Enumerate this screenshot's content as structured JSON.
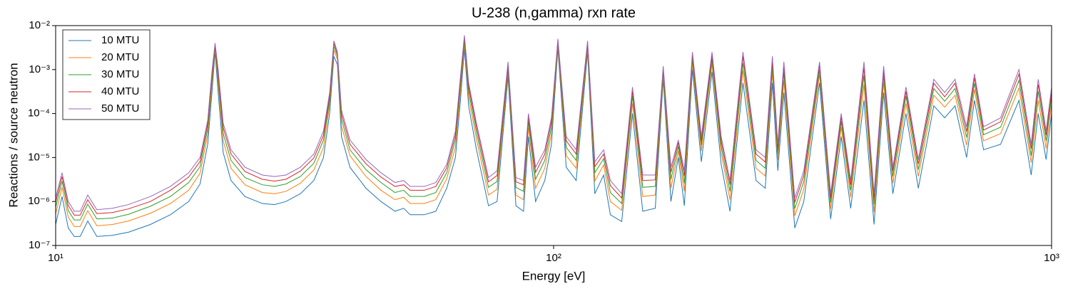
{
  "chart_data": {
    "type": "line",
    "title": "U-238 (n,gamma) rxn rate",
    "x_label": "Energy [eV]",
    "y_label": "Reactions / source neutron",
    "log_x": true,
    "log_y": true,
    "legend_loc": "upper left",
    "xlim": [
      10,
      1000
    ],
    "ylim": [
      1e-07,
      0.01
    ],
    "xticks": [
      {
        "value": 10,
        "label": "10¹"
      },
      {
        "value": 100,
        "label": "10²"
      },
      {
        "value": 1000,
        "label": "10³"
      }
    ],
    "yticks": [
      {
        "value": 1e-07,
        "label": "10⁻⁷"
      },
      {
        "value": 1e-06,
        "label": "10⁻⁶"
      },
      {
        "value": 1e-05,
        "label": "10⁻⁵"
      },
      {
        "value": 0.0001,
        "label": "10⁻⁴"
      },
      {
        "value": 0.001,
        "label": "10⁻³"
      },
      {
        "value": 0.01,
        "label": "10⁻²"
      }
    ],
    "x": [
      10,
      10.3,
      10.6,
      10.9,
      11.2,
      11.6,
      12.1,
      13,
      14,
      15.5,
      17,
      18.5,
      19.5,
      20.2,
      20.6,
      20.9,
      21.2,
      21.7,
      22.5,
      24,
      26,
      27.5,
      29,
      31,
      33,
      34.5,
      35.5,
      36.2,
      36.8,
      37.5,
      39,
      42,
      45,
      48,
      50,
      51.5,
      55,
      58,
      61,
      63.5,
      65,
      66.2,
      67.5,
      70,
      74,
      77,
      81,
      84,
      87,
      89,
      92,
      96,
      99,
      102,
      106,
      111,
      117,
      121,
      126,
      130,
      137,
      144,
      151,
      160,
      166,
      172,
      178,
      183,
      190,
      198,
      208,
      217,
      226,
      240,
      255,
      266,
      275,
      282,
      290,
      305,
      318,
      342,
      360,
      378,
      395,
      420,
      440,
      460,
      480,
      510,
      540,
      580,
      610,
      640,
      675,
      700,
      730,
      790,
      860,
      910,
      940,
      975,
      1000
    ],
    "series": [
      {
        "name": "10 MTU",
        "color": "#1f77b4",
        "values": [
          3e-07,
          1.3e-06,
          2.5e-07,
          1.6e-07,
          1.6e-07,
          3.6e-07,
          1.6e-07,
          1.7e-07,
          2e-07,
          3e-07,
          5e-07,
          1e-06,
          2.5e-06,
          2e-05,
          0.0003,
          0.0025,
          0.0003,
          1.3e-05,
          3e-06,
          1.3e-06,
          9e-07,
          8.5e-07,
          1e-06,
          1.5e-06,
          3e-06,
          1e-05,
          0.0001,
          0.002,
          0.0013,
          3e-05,
          6e-06,
          2e-06,
          1e-06,
          6e-07,
          7e-07,
          5e-07,
          5e-07,
          6e-07,
          2e-06,
          1e-05,
          0.0002,
          0.003,
          0.00015,
          1.5e-05,
          8e-07,
          1e-06,
          0.0007,
          8e-07,
          6e-07,
          3e-05,
          1e-06,
          3e-06,
          2e-05,
          0.003,
          6e-06,
          3e-06,
          0.0025,
          1.5e-06,
          4e-06,
          5e-07,
          3.5e-07,
          0.0001,
          6e-07,
          7e-07,
          0.0006,
          1e-06,
          1e-05,
          8e-07,
          0.001,
          8e-06,
          0.0009,
          7e-06,
          6e-07,
          0.0005,
          3e-06,
          2e-06,
          0.0005,
          5e-06,
          0.0003,
          2.5e-07,
          1e-06,
          0.0005,
          4e-07,
          3e-05,
          7e-07,
          0.0002,
          3e-07,
          0.0003,
          1.5e-06,
          0.0001,
          2e-06,
          0.00015,
          8e-05,
          0.00015,
          1e-05,
          0.0002,
          1.5e-05,
          2e-05,
          0.0002,
          4e-06,
          0.0001,
          9e-06,
          0.0001
        ]
      },
      {
        "name": "20 MTU",
        "color": "#ff7f0e",
        "values": [
          5.2e-07,
          2.1e-06,
          4.4e-07,
          2.7e-07,
          2.7e-07,
          6.2e-07,
          2.8e-07,
          3e-07,
          3.6e-07,
          5.4e-07,
          9e-07,
          1.8e-06,
          4.4e-06,
          3.3e-05,
          0.00047,
          0.003,
          0.00049,
          2.4e-05,
          5.7e-06,
          2.4e-06,
          1.6e-06,
          1.5e-06,
          1.7e-06,
          2.6e-06,
          5.2e-06,
          1.7e-05,
          0.000155,
          0.0028,
          0.0017,
          5.2e-05,
          1.1e-05,
          3.7e-06,
          1.8e-06,
          1.1e-06,
          1.25e-06,
          9e-07,
          9e-07,
          1.1e-06,
          3.3e-06,
          1.7e-05,
          0.00033,
          0.004,
          0.00024,
          2.6e-05,
          1.4e-06,
          1.9e-06,
          0.00095,
          1.4e-06,
          1.1e-06,
          4.9e-05,
          2e-06,
          5.7e-06,
          3.5e-05,
          0.0037,
          1.1e-05,
          5.7e-06,
          0.0032,
          2.9e-06,
          6.8e-06,
          1e-06,
          6.3e-07,
          0.00017,
          1.3e-06,
          1.4e-06,
          0.00079,
          2e-06,
          1.4e-05,
          1.7e-06,
          0.0014,
          1.4e-05,
          0.00135,
          1.3e-05,
          1.1e-06,
          0.00095,
          5.7e-06,
          3.8e-06,
          0.00087,
          8.7e-06,
          0.00057,
          4.7e-07,
          1.9e-06,
          0.00078,
          6.8e-07,
          4.9e-05,
          1.25e-06,
          0.00045,
          5.7e-07,
          0.00052,
          2.6e-06,
          0.00017,
          3.7e-06,
          0.00026,
          0.00014,
          0.00026,
          1.9e-05,
          0.00035,
          2.4e-05,
          3.5e-05,
          0.00038,
          7.6e-06,
          0.0002,
          1.6e-05,
          0.00017
        ]
      },
      {
        "name": "30 MTU",
        "color": "#2ca02c",
        "values": [
          7.4e-07,
          2.9e-06,
          6.2e-07,
          3.8e-07,
          3.8e-07,
          8.7e-07,
          4e-07,
          4.2e-07,
          5.1e-07,
          7.8e-07,
          1.3e-06,
          2.7e-06,
          6.2e-06,
          4.5e-05,
          0.00061,
          0.0034,
          0.00066,
          3.5e-05,
          8.6e-06,
          3.5e-06,
          2.4e-06,
          2.2e-06,
          2.5e-06,
          3.7e-06,
          7.4e-06,
          2.5e-05,
          0.0002,
          0.0034,
          0.002,
          7.4e-05,
          1.5e-05,
          5.3e-06,
          2.7e-06,
          1.6e-06,
          1.8e-06,
          1.3e-06,
          1.3e-06,
          1.6e-06,
          4.5e-06,
          2.5e-05,
          0.00045,
          0.0047,
          0.00033,
          3.7e-05,
          2.1e-06,
          2.85e-06,
          0.0011,
          2.1e-06,
          1.7e-06,
          6.6e-05,
          3.2e-06,
          8.6e-06,
          4.9e-05,
          0.0042,
          1.7e-05,
          8.6e-06,
          0.0037,
          4.5e-06,
          9.4e-06,
          1.6e-06,
          9e-07,
          0.00025,
          2.1e-06,
          2.2e-06,
          0.00094,
          3.2e-06,
          1.8e-05,
          2.6e-06,
          0.0018,
          1.9e-05,
          0.0017,
          1.8e-05,
          1.7e-06,
          0.0014,
          8.6e-06,
          5.7e-06,
          0.0012,
          1.2e-05,
          0.00086,
          6.9e-07,
          2.85e-06,
          0.001,
          9.4e-07,
          6.6e-05,
          1.8e-06,
          0.00074,
          8.6e-07,
          0.00074,
          3.7e-06,
          0.00025,
          5.3e-06,
          0.00037,
          0.00019,
          0.00037,
          2.85e-05,
          0.00049,
          3.3e-05,
          4.9e-05,
          0.00057,
          1.1e-05,
          0.00032,
          2.4e-05,
          0.00025
        ]
      },
      {
        "name": "40 MTU",
        "color": "#d62728",
        "values": [
          9.8e-07,
          3.7e-06,
          8.1e-07,
          4.9e-07,
          4.9e-07,
          1.1e-06,
          5.3e-07,
          5.6e-07,
          6.8e-07,
          1e-06,
          1.8e-06,
          3.6e-06,
          8.1e-06,
          5.8e-05,
          0.00076,
          0.0037,
          0.00083,
          4.8e-05,
          1.2e-05,
          4.8e-06,
          3.2e-06,
          2.9e-06,
          3.2e-06,
          4.9e-06,
          9.8e-06,
          3.2e-05,
          0.00025,
          0.004,
          0.0023,
          9.8e-05,
          2e-05,
          7.2e-06,
          3.6e-06,
          2.2e-06,
          2.4e-06,
          1.8e-06,
          1.8e-06,
          2.2e-06,
          5.8e-06,
          3.2e-05,
          0.00058,
          0.0054,
          0.00042,
          4.9e-05,
          2.8e-06,
          3.9e-06,
          0.0013,
          2.8e-06,
          2.4e-06,
          8.3e-05,
          4.6e-06,
          1.2e-05,
          6.5e-05,
          0.0046,
          2.4e-05,
          1.2e-05,
          0.0041,
          6.2e-06,
          1.2e-05,
          2.3e-06,
          1.2e-06,
          0.00032,
          3e-06,
          3.1e-06,
          0.0011,
          4.6e-06,
          2.2e-05,
          3.8e-06,
          0.0022,
          2.4e-05,
          0.0021,
          2.4e-05,
          2.4e-06,
          0.002,
          1.2e-05,
          7.9e-06,
          0.0016,
          1.6e-05,
          0.0012,
          9.5e-07,
          3.9e-06,
          0.0013,
          1.2e-06,
          8.3e-05,
          2.4e-06,
          0.0011,
          1.2e-06,
          0.00098,
          4.9e-06,
          0.00032,
          7.2e-06,
          0.00049,
          0.00024,
          0.00049,
          3.9e-05,
          0.00065,
          4.2e-05,
          6.5e-05,
          0.00079,
          1.6e-05,
          0.00046,
          3.2e-05,
          0.00032
        ]
      },
      {
        "name": "50 MTU",
        "color": "#9467bd",
        "values": [
          1.2e-06,
          4.5e-06,
          1e-06,
          6e-07,
          6e-07,
          1.4e-06,
          6.5e-07,
          7e-07,
          8.5e-07,
          1.3e-06,
          2.2e-06,
          4.5e-06,
          1e-05,
          7e-05,
          0.0009,
          0.004,
          0.001,
          6e-05,
          1.5e-05,
          6e-06,
          4e-06,
          3.7e-06,
          4e-06,
          6e-06,
          1.2e-05,
          4e-05,
          0.0003,
          0.0045,
          0.0025,
          0.00012,
          2.5e-05,
          9e-06,
          4.5e-06,
          2.7e-06,
          3e-06,
          2.2e-06,
          2.2e-06,
          2.7e-06,
          7e-06,
          4e-05,
          0.0007,
          0.006,
          0.0005,
          6e-05,
          3.5e-06,
          5e-06,
          0.0015,
          3.5e-06,
          3e-06,
          0.0001,
          6e-06,
          1.5e-05,
          8e-05,
          0.005,
          3e-05,
          1.5e-05,
          0.0045,
          8e-06,
          1.5e-05,
          3e-06,
          1.5e-06,
          0.0004,
          4e-06,
          4e-06,
          0.0012,
          6e-06,
          2.5e-05,
          5e-06,
          0.0025,
          3e-05,
          0.0025,
          3e-05,
          3e-06,
          0.0025,
          1.5e-05,
          1e-05,
          0.002,
          2e-05,
          0.0015,
          1.2e-06,
          5e-06,
          0.0015,
          1.5e-06,
          0.0001,
          3e-06,
          0.0015,
          1.5e-06,
          0.0012,
          6e-06,
          0.0004,
          9e-06,
          0.0006,
          0.0003,
          0.0006,
          5e-05,
          0.0008,
          5e-05,
          8e-05,
          0.001,
          2e-05,
          0.0006,
          4e-05,
          0.0004
        ]
      }
    ]
  }
}
